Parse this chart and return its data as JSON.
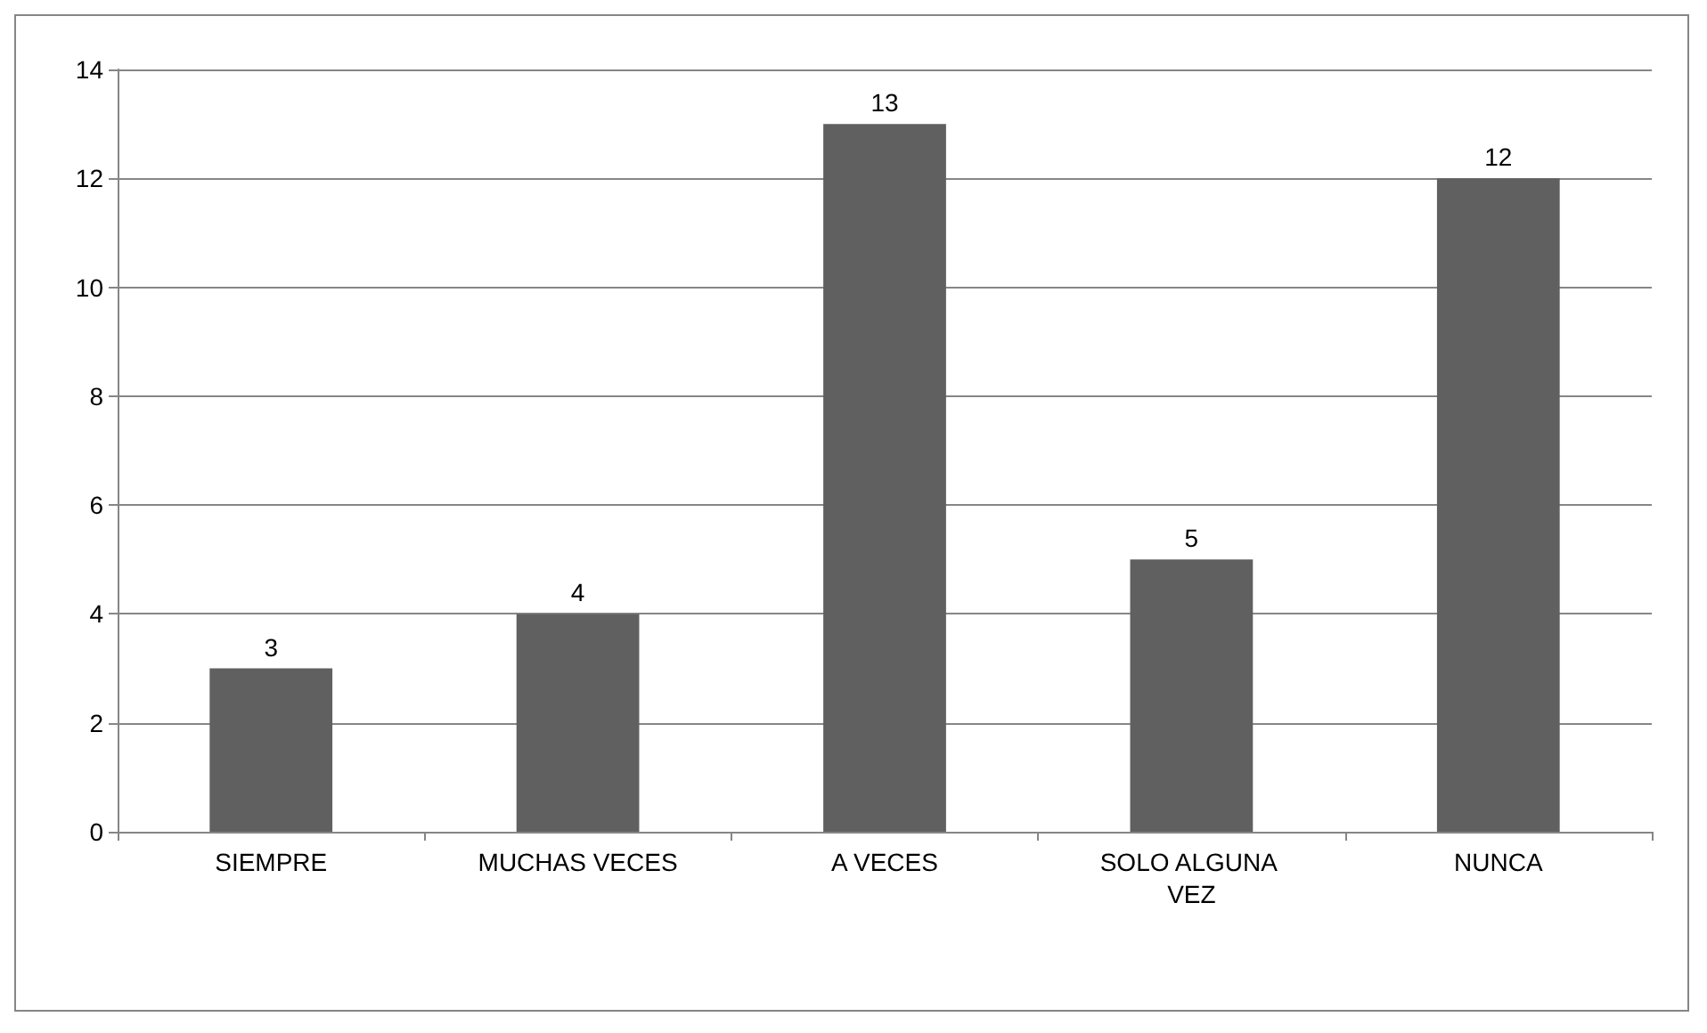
{
  "chart_data": {
    "type": "bar",
    "categories": [
      "SIEMPRE",
      "MUCHAS VECES",
      "A VECES",
      "SOLO ALGUNA VEZ",
      "NUNCA"
    ],
    "values": [
      3,
      4,
      13,
      5,
      12
    ],
    "color": "#606060",
    "ylim": [
      0,
      14
    ],
    "yticks": [
      0,
      2,
      4,
      6,
      8,
      10,
      12,
      14
    ],
    "grid": "y",
    "data_labels": true
  }
}
